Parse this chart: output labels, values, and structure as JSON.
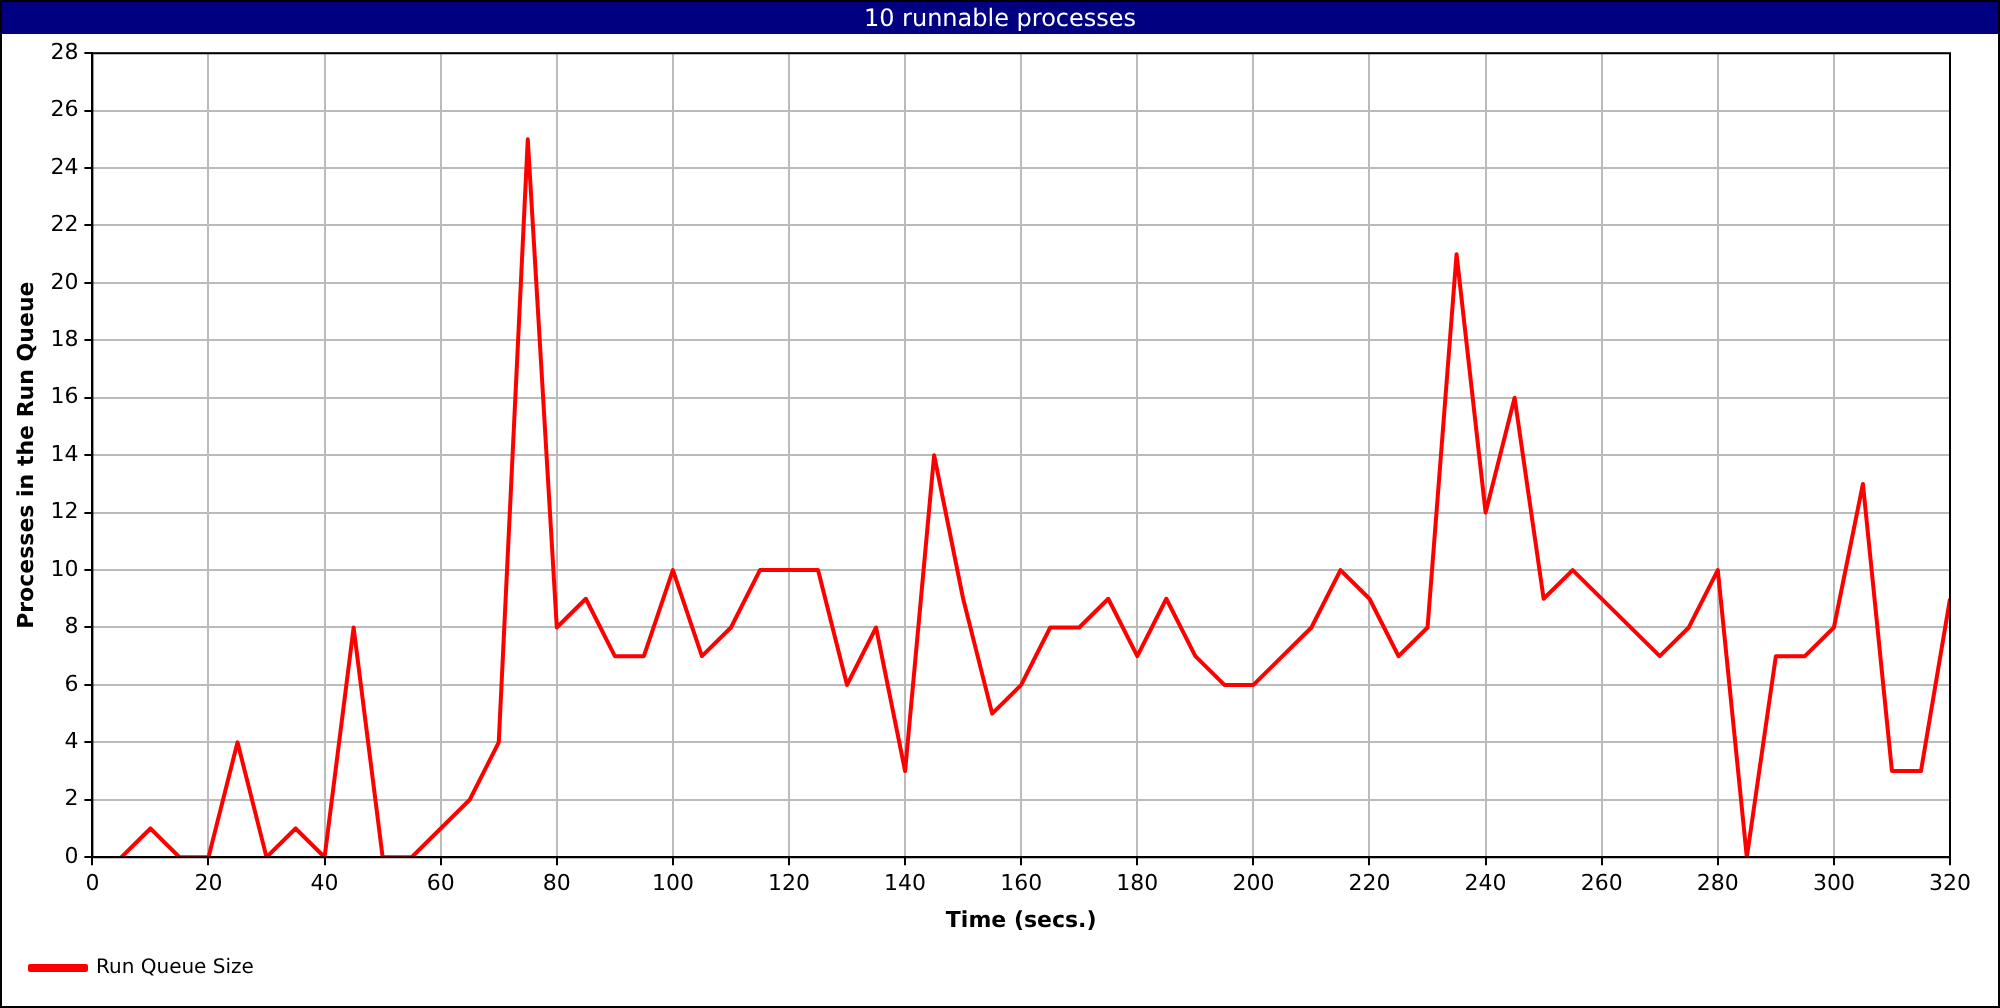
{
  "chart_data": {
    "type": "line",
    "title": "10 runnable processes",
    "xlabel": "Time (secs.)",
    "ylabel": "Processes in the Run Queue",
    "xlim": [
      0,
      320
    ],
    "xticks": [
      0,
      20,
      40,
      60,
      80,
      100,
      120,
      140,
      160,
      180,
      200,
      220,
      240,
      260,
      280,
      300,
      320
    ],
    "ylim": [
      0,
      28
    ],
    "yticks": [
      0,
      2,
      4,
      6,
      8,
      10,
      12,
      14,
      16,
      18,
      20,
      22,
      24,
      26,
      28
    ],
    "grid": true,
    "legend": "bottom left",
    "marker": "none",
    "line_style": "solid",
    "series": [
      {
        "name": "Run Queue Size",
        "color": "#ff0000",
        "x": [
          5,
          10,
          15,
          20,
          25,
          30,
          35,
          40,
          45,
          50,
          55,
          65,
          70,
          75,
          80,
          85,
          90,
          95,
          100,
          105,
          110,
          115,
          120,
          125,
          130,
          135,
          140,
          145,
          150,
          155,
          160,
          165,
          170,
          175,
          180,
          185,
          190,
          195,
          200,
          210,
          215,
          220,
          225,
          230,
          235,
          240,
          245,
          250,
          255,
          270,
          275,
          280,
          285,
          290,
          295,
          300,
          305,
          310,
          315,
          320
        ],
        "values": [
          0,
          1,
          0,
          0,
          4,
          0,
          1,
          0,
          8,
          0,
          0,
          2,
          4,
          25,
          8,
          9,
          7,
          7,
          10,
          7,
          8,
          10,
          10,
          10,
          6,
          8,
          3,
          14,
          9,
          5,
          6,
          8,
          8,
          9,
          7,
          9,
          7,
          6,
          6,
          8,
          10,
          9,
          7,
          8,
          21,
          12,
          16,
          9,
          10,
          7,
          8,
          10,
          0,
          7,
          7,
          8,
          13,
          3,
          3,
          9
        ]
      }
    ]
  }
}
